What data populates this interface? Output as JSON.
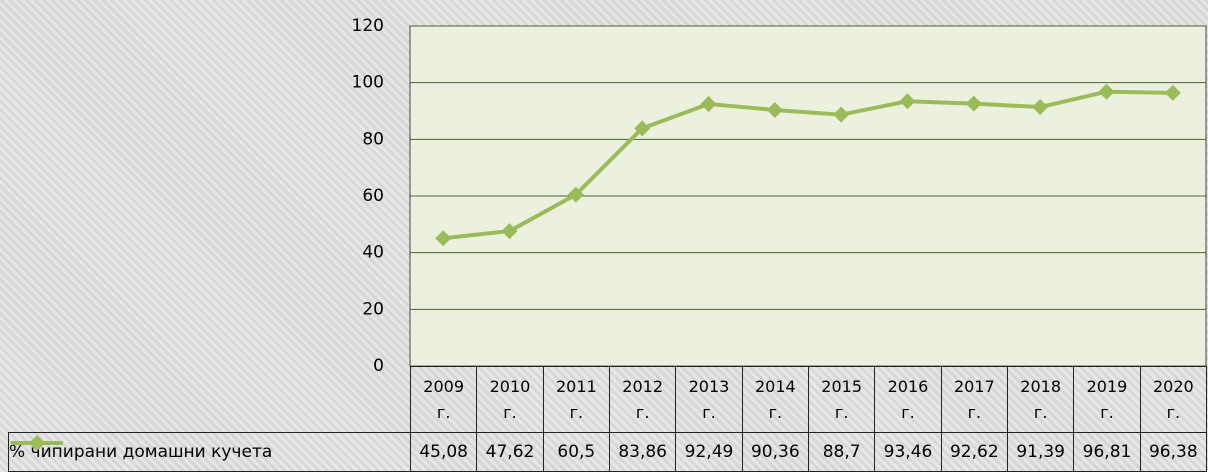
{
  "chart_data": {
    "type": "line",
    "categories": [
      "2009 г.",
      "2010 г.",
      "2011 г.",
      "2012 г.",
      "2013 г.",
      "2014 г.",
      "2015 г.",
      "2016 г.",
      "2017 г.",
      "2018 г.",
      "2019 г.",
      "2020 г."
    ],
    "series": [
      {
        "name": "% чипирани домашни кучета",
        "color": "#9bbb59",
        "values": [
          45.08,
          47.62,
          60.5,
          83.86,
          92.49,
          90.36,
          88.7,
          93.46,
          92.62,
          91.39,
          96.81,
          96.38
        ],
        "value_labels": [
          "45,08",
          "47,62",
          "60,5",
          "83,86",
          "92,49",
          "90,36",
          "88,7",
          "93,46",
          "92,62",
          "91,39",
          "96,81",
          "96,38"
        ]
      }
    ],
    "ylim": [
      0,
      120
    ],
    "yticks": [
      0,
      20,
      40,
      60,
      80,
      100,
      120
    ],
    "grid": true
  }
}
